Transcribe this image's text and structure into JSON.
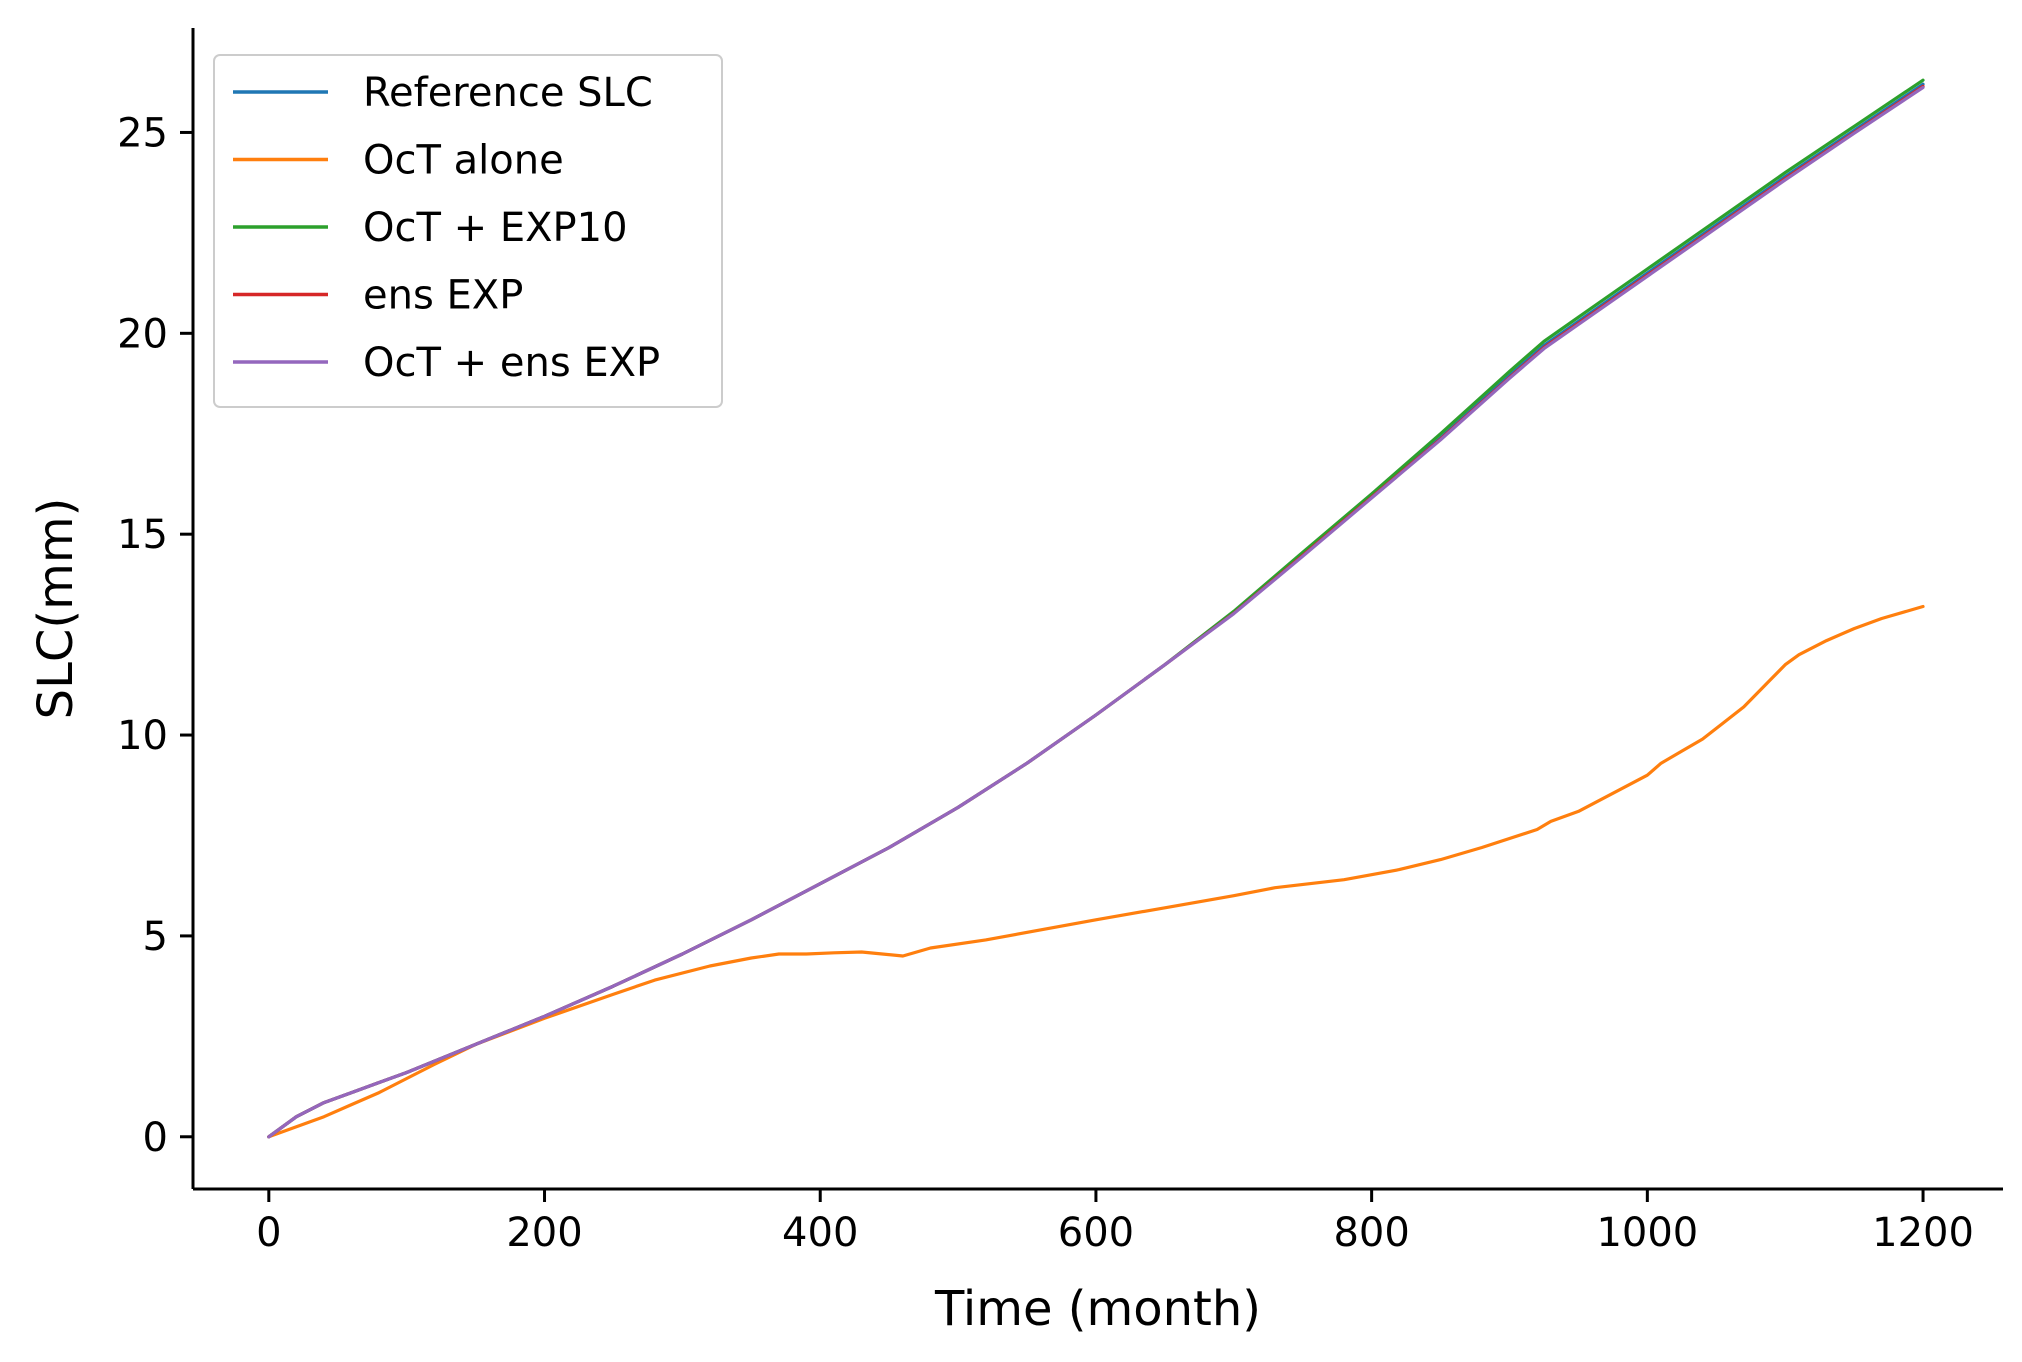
{
  "chart_data": {
    "type": "line",
    "xlabel": "Time (month)",
    "ylabel": "SLC(mm)",
    "xlim": [
      -55,
      1258
    ],
    "ylim": [
      -1.3,
      27.6
    ],
    "xticks": [
      0,
      200,
      400,
      600,
      800,
      1000,
      1200
    ],
    "yticks": [
      0,
      5,
      10,
      15,
      20,
      25
    ],
    "grid": false,
    "legend_position": "upper-left",
    "series": [
      {
        "name": "Reference SLC",
        "color": "#1f77b4",
        "x": [
          0,
          20,
          40,
          60,
          80,
          100,
          150,
          200,
          250,
          300,
          350,
          400,
          450,
          500,
          550,
          600,
          650,
          700,
          750,
          800,
          850,
          900,
          925,
          950,
          1000,
          1050,
          1100,
          1150,
          1200
        ],
        "y": [
          0,
          0.5,
          0.85,
          1.1,
          1.35,
          1.6,
          2.3,
          3.0,
          3.75,
          4.55,
          5.4,
          6.3,
          7.2,
          8.2,
          9.3,
          10.5,
          11.75,
          13.05,
          14.5,
          15.95,
          17.4,
          18.95,
          19.7,
          20.3,
          21.5,
          22.7,
          23.9,
          25.05,
          26.2
        ]
      },
      {
        "name": "OcT alone",
        "color": "#ff7f0e",
        "x": [
          0,
          20,
          40,
          60,
          80,
          100,
          120,
          150,
          200,
          250,
          280,
          320,
          350,
          370,
          390,
          410,
          430,
          445,
          460,
          480,
          520,
          600,
          650,
          700,
          730,
          780,
          820,
          850,
          880,
          920,
          930,
          950,
          1000,
          1010,
          1025,
          1040,
          1055,
          1070,
          1090,
          1100,
          1110,
          1130,
          1150,
          1170,
          1200
        ],
        "y": [
          0,
          0.25,
          0.5,
          0.8,
          1.1,
          1.45,
          1.8,
          2.3,
          2.95,
          3.55,
          3.9,
          4.25,
          4.45,
          4.55,
          4.55,
          4.58,
          4.6,
          4.55,
          4.5,
          4.7,
          4.9,
          5.4,
          5.7,
          6.0,
          6.2,
          6.4,
          6.65,
          6.9,
          7.2,
          7.65,
          7.85,
          8.1,
          9.0,
          9.3,
          9.6,
          9.9,
          10.3,
          10.7,
          11.4,
          11.75,
          12.0,
          12.35,
          12.65,
          12.9,
          13.2
        ]
      },
      {
        "name": "OcT + EXP10",
        "color": "#2ca02c",
        "x": [
          0,
          20,
          40,
          60,
          80,
          100,
          150,
          200,
          250,
          300,
          350,
          400,
          450,
          500,
          550,
          600,
          650,
          700,
          750,
          800,
          850,
          900,
          925,
          950,
          1000,
          1050,
          1100,
          1150,
          1200
        ],
        "y": [
          0,
          0.5,
          0.85,
          1.1,
          1.35,
          1.6,
          2.3,
          3.0,
          3.75,
          4.55,
          5.4,
          6.3,
          7.2,
          8.2,
          9.3,
          10.5,
          11.75,
          13.08,
          14.55,
          16.0,
          17.5,
          19.05,
          19.8,
          20.4,
          21.6,
          22.8,
          24.0,
          25.15,
          26.3
        ]
      },
      {
        "name": "ens EXP",
        "color": "#d62728",
        "x": [
          0,
          20,
          40,
          60,
          80,
          100,
          150,
          200,
          250,
          300,
          350,
          400,
          450,
          500,
          550,
          600,
          650,
          700,
          750,
          800,
          850,
          900,
          925,
          950,
          1000,
          1050,
          1100,
          1150,
          1200
        ],
        "y": [
          0,
          0.5,
          0.85,
          1.1,
          1.35,
          1.6,
          2.3,
          3.0,
          3.75,
          4.55,
          5.4,
          6.3,
          7.2,
          8.2,
          9.3,
          10.5,
          11.75,
          13.03,
          14.47,
          15.92,
          17.37,
          18.9,
          19.65,
          20.25,
          21.45,
          22.65,
          23.85,
          25.0,
          26.15
        ]
      },
      {
        "name": "OcT + ens EXP",
        "color": "#9467bd",
        "x": [
          0,
          20,
          40,
          60,
          80,
          100,
          150,
          200,
          250,
          300,
          350,
          400,
          450,
          500,
          550,
          600,
          650,
          700,
          750,
          800,
          850,
          900,
          925,
          950,
          1000,
          1050,
          1100,
          1150,
          1200
        ],
        "y": [
          0,
          0.5,
          0.85,
          1.1,
          1.35,
          1.6,
          2.3,
          3.0,
          3.75,
          4.55,
          5.4,
          6.3,
          7.2,
          8.2,
          9.3,
          10.5,
          11.75,
          13.02,
          14.45,
          15.9,
          17.35,
          18.88,
          19.62,
          20.22,
          21.42,
          22.62,
          23.82,
          24.98,
          26.12
        ]
      }
    ]
  }
}
